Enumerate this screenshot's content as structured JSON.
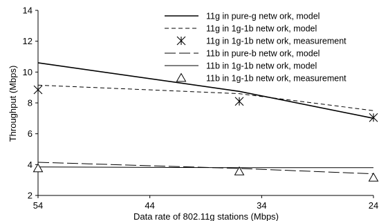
{
  "chart_data": {
    "type": "line",
    "xlabel": "Data rate of 802.11g stations (Mbps)",
    "ylabel": "Throughput (Mbps)",
    "xlim": [
      54,
      24
    ],
    "ylim": [
      2,
      14
    ],
    "x_ticks": [
      54,
      44,
      34,
      24
    ],
    "y_ticks": [
      2,
      4,
      6,
      8,
      10,
      12,
      14
    ],
    "grid": false,
    "legend_position": "top-right",
    "series": [
      {
        "name": "11g in pure-g netw ork, model",
        "kind": "line",
        "style": "solid-thick",
        "x": [
          54,
          36,
          24
        ],
        "y": [
          10.6,
          8.75,
          7.0
        ]
      },
      {
        "name": "11g in 1g-1b netw ork, model",
        "kind": "line",
        "style": "dashed-short",
        "x": [
          54,
          36,
          24
        ],
        "y": [
          9.15,
          8.6,
          7.5
        ]
      },
      {
        "name": "11g in 1g-1b netw ork, measurement",
        "kind": "marker",
        "marker": "asterisk",
        "x": [
          54,
          36,
          24
        ],
        "y": [
          8.85,
          8.1,
          7.05
        ]
      },
      {
        "name": "11b in pure-b netw ork, model",
        "kind": "line",
        "style": "dashed-long",
        "x": [
          54,
          36,
          24
        ],
        "y": [
          4.15,
          3.75,
          3.4
        ]
      },
      {
        "name": "11b in 1g-1b netw ork, model",
        "kind": "line",
        "style": "solid-thin",
        "x": [
          54,
          36,
          24
        ],
        "y": [
          3.85,
          3.8,
          3.8
        ]
      },
      {
        "name": "11b in 1g-1b netw ork, measurement",
        "kind": "marker",
        "marker": "triangle",
        "x": [
          54,
          36,
          24
        ],
        "y": [
          3.75,
          3.55,
          3.15
        ]
      }
    ]
  }
}
